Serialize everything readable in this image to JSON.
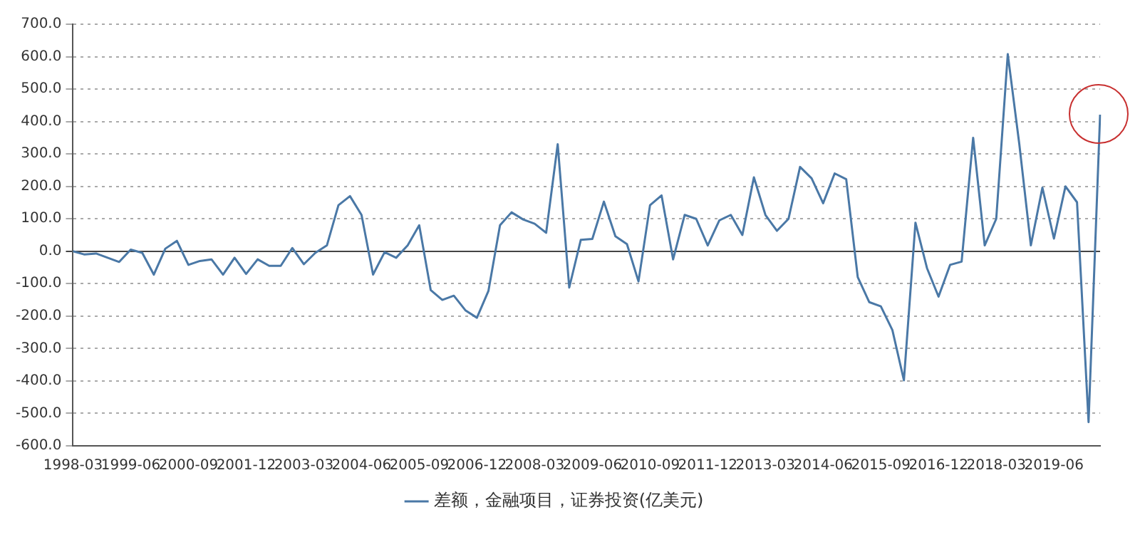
{
  "chart_data": {
    "type": "line",
    "categories": [
      "1998-03",
      null,
      null,
      null,
      null,
      "1999-06",
      null,
      null,
      null,
      null,
      "2000-09",
      null,
      null,
      null,
      null,
      "2001-12",
      null,
      null,
      null,
      null,
      "2003-03",
      null,
      null,
      null,
      null,
      "2004-06",
      null,
      null,
      null,
      null,
      "2005-09",
      null,
      null,
      null,
      null,
      "2006-12",
      null,
      null,
      null,
      null,
      "2008-03",
      null,
      null,
      null,
      null,
      "2009-06",
      null,
      null,
      null,
      null,
      "2010-09",
      null,
      null,
      null,
      null,
      "2011-12",
      null,
      null,
      null,
      null,
      "2013-03",
      null,
      null,
      null,
      null,
      "2014-06",
      null,
      null,
      null,
      null,
      "2015-09",
      null,
      null,
      null,
      null,
      "2016-12",
      null,
      null,
      null,
      null,
      "2018-03",
      null,
      null,
      null,
      null,
      "2019-06",
      null,
      null,
      null,
      null
    ],
    "series": [
      {
        "name": "差额，金融项目，证券投资(亿美元)",
        "color": "#4a78a6",
        "values": [
          0,
          -10,
          -7,
          -20,
          -33,
          5,
          -5,
          -72,
          8,
          32,
          -42,
          -30,
          -25,
          -72,
          -20,
          -70,
          -25,
          -45,
          -45,
          10,
          -40,
          -5,
          18,
          142,
          170,
          112,
          -72,
          -3,
          -20,
          18,
          80,
          -120,
          -150,
          -137,
          -182,
          -205,
          -122,
          80,
          120,
          98,
          85,
          57,
          330,
          -112,
          35,
          38,
          153,
          46,
          22,
          -93,
          142,
          172,
          -25,
          112,
          100,
          18,
          95,
          112,
          50,
          228,
          112,
          63,
          100,
          260,
          225,
          148,
          240,
          222,
          -80,
          -157,
          -170,
          -243,
          -398,
          88,
          -52,
          -140,
          -42,
          -32,
          350,
          18,
          100,
          608,
          330,
          18,
          196,
          39,
          200,
          151,
          -527,
          421
        ]
      }
    ],
    "ylim": [
      -600,
      700
    ],
    "yticks": [
      {
        "value": -600,
        "label": "-600.0"
      },
      {
        "value": -500,
        "label": "-500.0"
      },
      {
        "value": -400,
        "label": "-400.0"
      },
      {
        "value": -300,
        "label": "-300.0"
      },
      {
        "value": -200,
        "label": "-200.0"
      },
      {
        "value": -100,
        "label": "-100.0"
      },
      {
        "value": 0,
        "label": "0.0"
      },
      {
        "value": 100,
        "label": "100.0"
      },
      {
        "value": 200,
        "label": "200.0"
      },
      {
        "value": 300,
        "label": "300.0"
      },
      {
        "value": 400,
        "label": "400.0"
      },
      {
        "value": 500,
        "label": "500.0"
      },
      {
        "value": 600,
        "label": "600.0"
      },
      {
        "value": 700,
        "label": "700.0"
      }
    ],
    "grid": "y",
    "legend": "bottom",
    "marker": "none",
    "line_style": "solid"
  }
}
